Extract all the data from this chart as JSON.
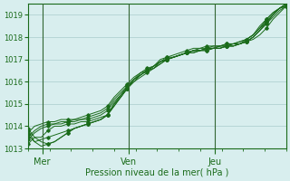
{
  "title": "",
  "xlabel": "Pression niveau de la mer( hPa )",
  "ylabel": "",
  "background_color": "#d8eeee",
  "grid_color": "#aacccc",
  "line_color": "#1a6b1a",
  "ylim": [
    1013.0,
    1019.5
  ],
  "xlim": [
    0,
    72
  ],
  "yticks": [
    1013,
    1014,
    1015,
    1016,
    1017,
    1018,
    1019
  ],
  "xtick_positions": [
    4,
    28,
    52
  ],
  "xtick_labels": [
    "Mer",
    "Ven",
    "Jeu"
  ],
  "vline_positions": [
    4,
    28,
    52
  ],
  "series": [
    [
      1013.2,
      1013.5,
      1013.5,
      1013.8,
      1014.0,
      1014.0,
      1014.1,
      1014.1,
      1014.2,
      1014.2,
      1014.3,
      1014.4,
      1014.5,
      1015.0,
      1015.3,
      1015.7,
      1016.0,
      1016.3,
      1016.5,
      1016.7,
      1017.0,
      1017.1,
      1017.2,
      1017.3,
      1017.4,
      1017.5,
      1017.5,
      1017.6,
      1017.6,
      1017.6,
      1017.7,
      1017.7,
      1017.7,
      1017.8,
      1017.9,
      1018.1,
      1018.4,
      1018.8,
      1019.1,
      1019.4
    ],
    [
      1013.4,
      1013.7,
      1013.9,
      1014.0,
      1014.1,
      1014.1,
      1014.2,
      1014.2,
      1014.3,
      1014.3,
      1014.4,
      1014.5,
      1014.7,
      1015.1,
      1015.4,
      1015.7,
      1016.0,
      1016.2,
      1016.4,
      1016.6,
      1016.8,
      1017.0,
      1017.1,
      1017.2,
      1017.3,
      1017.4,
      1017.4,
      1017.5,
      1017.5,
      1017.6,
      1017.6,
      1017.7,
      1017.7,
      1017.8,
      1018.0,
      1018.3,
      1018.6,
      1018.9,
      1019.2,
      1019.4
    ],
    [
      1013.5,
      1013.8,
      1014.0,
      1014.1,
      1014.1,
      1014.2,
      1014.2,
      1014.3,
      1014.3,
      1014.4,
      1014.5,
      1014.6,
      1014.8,
      1015.2,
      1015.5,
      1015.8,
      1016.1,
      1016.3,
      1016.5,
      1016.7,
      1016.9,
      1017.0,
      1017.1,
      1017.2,
      1017.3,
      1017.4,
      1017.5,
      1017.5,
      1017.6,
      1017.6,
      1017.7,
      1017.7,
      1017.8,
      1017.9,
      1018.1,
      1018.4,
      1018.7,
      1019.0,
      1019.3,
      1019.5
    ],
    [
      1013.7,
      1014.0,
      1014.1,
      1014.2,
      1014.2,
      1014.3,
      1014.3,
      1014.3,
      1014.4,
      1014.5,
      1014.6,
      1014.7,
      1014.9,
      1015.3,
      1015.6,
      1015.9,
      1016.2,
      1016.4,
      1016.6,
      1016.7,
      1016.9,
      1017.0,
      1017.1,
      1017.2,
      1017.3,
      1017.3,
      1017.4,
      1017.4,
      1017.5,
      1017.5,
      1017.6,
      1017.6,
      1017.7,
      1017.8,
      1018.0,
      1018.3,
      1018.6,
      1019.0,
      1019.3,
      1019.5
    ],
    [
      1013.6,
      1013.3,
      1013.4,
      1013.5,
      1013.6,
      1013.7,
      1013.8,
      1013.9,
      1014.0,
      1014.1,
      1014.2,
      1014.3,
      1014.5,
      1014.9,
      1015.3,
      1015.7,
      1016.1,
      1016.3,
      1016.5,
      1016.6,
      1016.8,
      1017.0,
      1017.1,
      1017.2,
      1017.3,
      1017.4,
      1017.4,
      1017.5,
      1017.5,
      1017.6,
      1017.6,
      1017.7,
      1017.8,
      1017.9,
      1018.1,
      1018.4,
      1018.8,
      1019.1,
      1019.3,
      1019.5
    ],
    [
      1013.8,
      1013.3,
      1013.1,
      1013.2,
      1013.3,
      1013.5,
      1013.7,
      1013.9,
      1014.0,
      1014.1,
      1014.2,
      1014.3,
      1014.5,
      1014.9,
      1015.3,
      1015.7,
      1016.1,
      1016.3,
      1016.5,
      1016.6,
      1016.9,
      1017.0,
      1017.1,
      1017.2,
      1017.3,
      1017.4,
      1017.4,
      1017.5,
      1017.5,
      1017.5,
      1017.6,
      1017.6,
      1017.7,
      1017.8,
      1018.0,
      1018.3,
      1018.7,
      1019.0,
      1019.3,
      1019.4
    ],
    [
      1013.9,
      1013.5,
      1013.3,
      1013.2,
      1013.3,
      1013.5,
      1013.7,
      1013.9,
      1014.0,
      1014.1,
      1014.2,
      1014.3,
      1014.5,
      1015.0,
      1015.4,
      1015.8,
      1016.1,
      1016.4,
      1016.5,
      1016.7,
      1016.9,
      1017.1,
      1017.1,
      1017.2,
      1017.3,
      1017.3,
      1017.4,
      1017.4,
      1017.5,
      1017.5,
      1017.6,
      1017.6,
      1017.7,
      1017.9,
      1018.1,
      1018.5,
      1018.8,
      1019.1,
      1019.3,
      1019.4
    ]
  ]
}
